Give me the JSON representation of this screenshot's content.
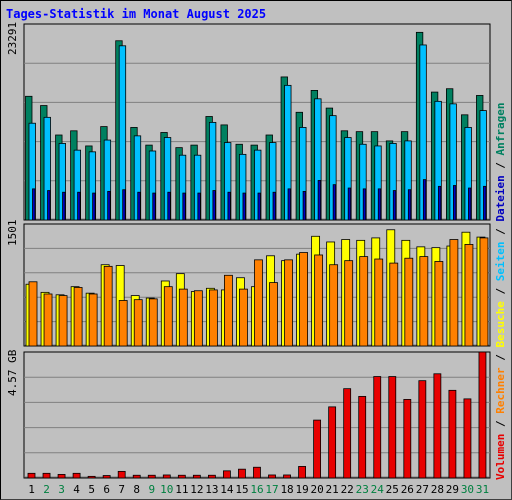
{
  "title": "Tages-Statistik im Monat August 2025",
  "legend": [
    {
      "label": "Volumen",
      "color": "#e80000"
    },
    {
      "label": " / ",
      "color": "#000000"
    },
    {
      "label": "Rechner",
      "color": "#ff8000"
    },
    {
      "label": " / ",
      "color": "#000000"
    },
    {
      "label": "Besuche",
      "color": "#ffff00"
    },
    {
      "label": " / ",
      "color": "#000000"
    },
    {
      "label": "Seiten",
      "color": "#00c0ff"
    },
    {
      "label": " / ",
      "color": "#000000"
    },
    {
      "label": "Dateien",
      "color": "#0000c0"
    },
    {
      "label": " / ",
      "color": "#000000"
    },
    {
      "label": "Anfragen",
      "color": "#008060"
    }
  ],
  "chart_data": [
    {
      "type": "bar",
      "panel": "top",
      "ymax_label": "23291",
      "ylim": [
        0,
        23291
      ],
      "categories": [
        "1",
        "2",
        "3",
        "4",
        "5",
        "6",
        "7",
        "8",
        "9",
        "10",
        "11",
        "12",
        "13",
        "14",
        "15",
        "16",
        "17",
        "18",
        "19",
        "20",
        "21",
        "22",
        "23",
        "24",
        "25",
        "26",
        "27",
        "28",
        "29",
        "30",
        "31"
      ],
      "weekend_days": [
        "2",
        "3",
        "9",
        "10",
        "16",
        "17",
        "23",
        "24",
        "30",
        "31"
      ],
      "series": [
        {
          "name": "Anfragen",
          "color": "#008060",
          "values": [
            14700,
            13600,
            10100,
            10600,
            8800,
            11100,
            21300,
            11000,
            8900,
            10400,
            8600,
            8900,
            12300,
            11300,
            9000,
            8900,
            10100,
            17000,
            12800,
            15400,
            13300,
            10600,
            10500,
            10500,
            9400,
            10500,
            22300,
            15200,
            15600,
            12500,
            14800
          ]
        },
        {
          "name": "Seiten",
          "color": "#00c0ff",
          "values": [
            11500,
            12200,
            9100,
            8300,
            8100,
            9500,
            20700,
            10000,
            8200,
            9800,
            7700,
            7700,
            11600,
            9200,
            7800,
            8300,
            9200,
            16000,
            11000,
            14400,
            12400,
            9800,
            9000,
            8800,
            9100,
            9400,
            20800,
            14100,
            13800,
            11000,
            13000
          ]
        },
        {
          "name": "Dateien",
          "color": "#0000c0",
          "values": [
            3700,
            3500,
            3300,
            3300,
            3200,
            3400,
            3600,
            3300,
            3200,
            3300,
            3200,
            3200,
            3500,
            3300,
            3200,
            3200,
            3300,
            3700,
            3400,
            4700,
            4200,
            3800,
            3700,
            3700,
            3500,
            3600,
            4800,
            4000,
            4100,
            3800,
            4000
          ]
        }
      ]
    },
    {
      "type": "bar",
      "panel": "middle",
      "ymax_label": "1501",
      "ylim": [
        0,
        1501
      ],
      "categories": [
        "1",
        "2",
        "3",
        "4",
        "5",
        "6",
        "7",
        "8",
        "9",
        "10",
        "11",
        "12",
        "13",
        "14",
        "15",
        "16",
        "17",
        "18",
        "19",
        "20",
        "21",
        "22",
        "23",
        "24",
        "25",
        "26",
        "27",
        "28",
        "29",
        "30",
        "31"
      ],
      "series": [
        {
          "name": "Besuche",
          "color": "#ffff00",
          "values": [
            760,
            660,
            630,
            730,
            650,
            1000,
            990,
            620,
            590,
            800,
            890,
            670,
            710,
            690,
            840,
            730,
            1110,
            1050,
            1130,
            1350,
            1280,
            1310,
            1300,
            1330,
            1430,
            1300,
            1220,
            1210,
            1230,
            1400,
            1340
          ]
        },
        {
          "name": "Rechner",
          "color": "#ff8000",
          "values": [
            790,
            640,
            620,
            720,
            640,
            980,
            560,
            570,
            580,
            730,
            700,
            680,
            690,
            870,
            700,
            1060,
            780,
            1060,
            1150,
            1120,
            1000,
            1050,
            1100,
            1070,
            1020,
            1080,
            1100,
            1040,
            1310,
            1250,
            1330
          ]
        }
      ]
    },
    {
      "type": "bar",
      "panel": "bottom",
      "ymax_label": "4.57 GB",
      "ylim": [
        0,
        4.57
      ],
      "categories": [
        "1",
        "2",
        "3",
        "4",
        "5",
        "6",
        "7",
        "8",
        "9",
        "10",
        "11",
        "12",
        "13",
        "14",
        "15",
        "16",
        "17",
        "18",
        "19",
        "20",
        "21",
        "22",
        "23",
        "24",
        "25",
        "26",
        "27",
        "28",
        "29",
        "30",
        "31"
      ],
      "series": [
        {
          "name": "Volumen",
          "color": "#e80000",
          "values": [
            0.17,
            0.17,
            0.13,
            0.17,
            0.06,
            0.09,
            0.24,
            0.1,
            0.1,
            0.11,
            0.1,
            0.1,
            0.1,
            0.26,
            0.32,
            0.39,
            0.11,
            0.11,
            0.42,
            2.1,
            2.58,
            3.24,
            2.96,
            3.68,
            3.68,
            2.85,
            3.53,
            3.78,
            3.18,
            2.87,
            4.57
          ]
        }
      ]
    }
  ],
  "xlabels": [
    "1",
    "2",
    "3",
    "4",
    "5",
    "6",
    "7",
    "8",
    "9",
    "10",
    "11",
    "12",
    "13",
    "14",
    "15",
    "16",
    "17",
    "18",
    "19",
    "20",
    "21",
    "22",
    "23",
    "24",
    "25",
    "26",
    "27",
    "28",
    "29",
    "30",
    "31"
  ]
}
